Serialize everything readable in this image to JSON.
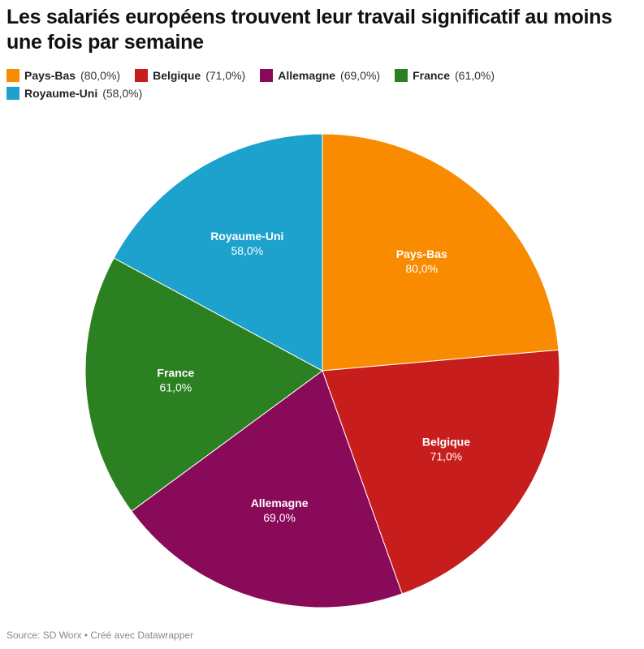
{
  "chart_data": {
    "type": "pie",
    "title": "Les salariés européens trouvent leur travail significatif au moins une fois par semaine",
    "categories": [
      "Pays-Bas",
      "Belgique",
      "Allemagne",
      "France",
      "Royaume-Uni"
    ],
    "values": [
      80,
      71,
      69,
      61,
      58
    ],
    "value_labels": [
      "80,0%",
      "71,0%",
      "69,0%",
      "61,0%",
      "58,0%"
    ],
    "legend_labels": [
      "(80,0%)",
      "(71,0%)",
      "(69,0%)",
      "(61,0%)",
      "(58,0%)"
    ],
    "colors": [
      "#f98b00",
      "#c71e1d",
      "#8a0a5a",
      "#2b8122",
      "#1da1cd"
    ],
    "source": "Source: SD Worx • Créé avec Datawrapper"
  }
}
